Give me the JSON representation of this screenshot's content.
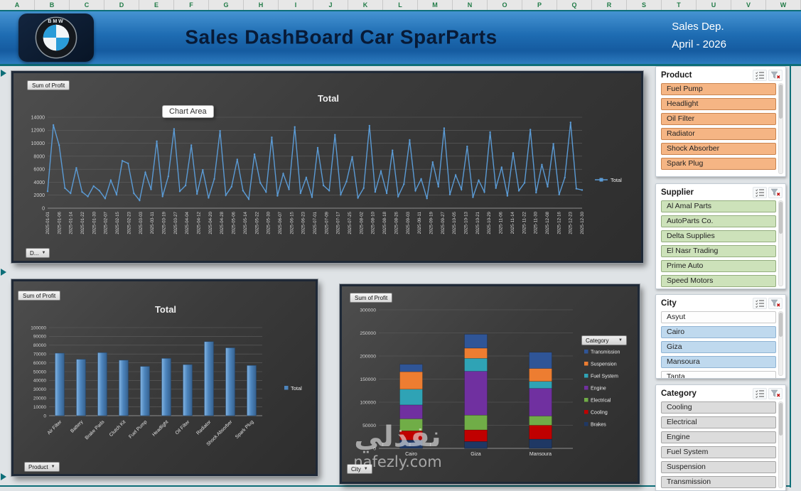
{
  "excel_columns": [
    "A",
    "B",
    "C",
    "D",
    "E",
    "F",
    "G",
    "H",
    "I",
    "J",
    "K",
    "L",
    "M",
    "N",
    "O",
    "P",
    "Q",
    "R",
    "S",
    "T",
    "U",
    "V",
    "W"
  ],
  "header": {
    "title": "Sales DashBoard Car SparParts",
    "dept_line1": "Sales Dep.",
    "dept_line2": "April - 2026",
    "logo_text": "BMW"
  },
  "charts": {
    "line": {
      "type": "line",
      "title": "Total",
      "field_button": "Sum of Profit",
      "axis_button": "D...",
      "tooltip": "Chart Area",
      "legend": "Total",
      "color": "#5b9bd5",
      "ylim": [
        0,
        14000
      ],
      "ytick": 2000,
      "labels": [
        "2025-01-01",
        "2025-01-06",
        "2025-01-14",
        "2025-01-22",
        "2025-01-30",
        "2025-02-07",
        "2025-02-15",
        "2025-02-23",
        "2025-03-03",
        "2025-03-11",
        "2025-03-19",
        "2025-03-27",
        "2025-04-04",
        "2025-04-12",
        "2025-04-20",
        "2025-04-28",
        "2025-05-06",
        "2025-05-14",
        "2025-05-22",
        "2025-05-30",
        "2025-06-07",
        "2025-06-15",
        "2025-06-23",
        "2025-07-01",
        "2025-07-09",
        "2025-07-17",
        "2025-07-25",
        "2025-08-02",
        "2025-08-10",
        "2025-08-18",
        "2025-08-26",
        "2025-09-03",
        "2025-09-11",
        "2025-09-19",
        "2025-09-27",
        "2025-10-05",
        "2025-10-13",
        "2025-10-21",
        "2025-10-29",
        "2025-11-06",
        "2025-11-14",
        "2025-11-22",
        "2025-11-30",
        "2025-12-08",
        "2025-12-16",
        "2025-12-23",
        "2025-12-30"
      ],
      "values": [
        2600,
        12800,
        9700,
        3100,
        2300,
        6200,
        2500,
        1800,
        3400,
        2700,
        1500,
        4300,
        2100,
        7300,
        6900,
        2300,
        1200,
        5500,
        2900,
        10300,
        1800,
        4900,
        12200,
        2600,
        3500,
        9700,
        2200,
        5900,
        1600,
        4500,
        11900,
        2000,
        3300,
        7500,
        2700,
        1400,
        8300,
        3900,
        2500,
        10900,
        1900,
        5300,
        2900,
        12500,
        2300,
        4700,
        1700,
        9300,
        3500,
        2700,
        11300,
        2100,
        4100,
        7900,
        1600,
        3100,
        12700,
        2500,
        5700,
        2300,
        8900,
        1800,
        3700,
        10500,
        2700,
        4500,
        1500,
        7100,
        3300,
        12300,
        2100,
        5100,
        2900,
        9500,
        1700,
        4300,
        2500,
        11700,
        3100,
        6300,
        1900,
        8500,
        2700,
        3900,
        12100,
        2400,
        6700,
        3300,
        9900,
        2100,
        4700,
        13200,
        3000,
        2800
      ]
    },
    "bar": {
      "type": "bar",
      "title": "Total",
      "field_button": "Sum of Profit",
      "axis_button": "Product",
      "legend": "Total",
      "color": "#4d85bd",
      "ylim": [
        0,
        100000
      ],
      "ytick": 10000,
      "categories": [
        "Air Filter",
        "Battery",
        "Brake Pads",
        "Clutch Kit",
        "Fuel Pump",
        "Headlight",
        "Oil Filter",
        "Radiator",
        "Shock Absorber",
        "Spark Plug"
      ],
      "values": [
        71000,
        64000,
        71500,
        63000,
        56000,
        65000,
        58000,
        84000,
        77000,
        57000
      ]
    },
    "stacked": {
      "type": "stacked-bar",
      "field_button": "Sum of Profit",
      "axis_button": "City",
      "legend_button": "Category",
      "ylim": [
        0,
        300000
      ],
      "ytick": 50000,
      "categories": [
        "Cairo",
        "Giza",
        "Mansoura"
      ],
      "series": [
        {
          "name": "Brakes",
          "color": "#1f3864",
          "values": [
            18000,
            15000,
            20000
          ]
        },
        {
          "name": "Cooling",
          "color": "#c00000",
          "values": [
            20000,
            25000,
            30000
          ]
        },
        {
          "name": "Electrical",
          "color": "#70ad47",
          "values": [
            26000,
            32000,
            20000
          ]
        },
        {
          "name": "Engine",
          "color": "#7030a0",
          "values": [
            30000,
            95000,
            60000
          ]
        },
        {
          "name": "Fuel System",
          "color": "#2fa3b5",
          "values": [
            34000,
            28000,
            15000
          ]
        },
        {
          "name": "Suspension",
          "color": "#ed7d31",
          "values": [
            38000,
            22000,
            28000
          ]
        },
        {
          "name": "Transmission",
          "color": "#2f5597",
          "values": [
            16000,
            30000,
            35000
          ]
        }
      ],
      "legend_order": [
        "Transmission",
        "Suspension",
        "Fuel System",
        "Engine",
        "Electrical",
        "Cooling",
        "Brakes"
      ]
    }
  },
  "slicers": [
    {
      "title": "Product",
      "item_bg": "#f5b584",
      "item_border": "#c9834f",
      "items": [
        {
          "label": "Fuel Pump",
          "selected": true
        },
        {
          "label": "Headlight",
          "selected": true
        },
        {
          "label": "Oil Filter",
          "selected": true
        },
        {
          "label": "Radiator",
          "selected": true
        },
        {
          "label": "Shock Absorber",
          "selected": true
        },
        {
          "label": "Spark Plug",
          "selected": true
        }
      ]
    },
    {
      "title": "Supplier",
      "item_bg": "#cde2ba",
      "item_border": "#94ae7e",
      "items": [
        {
          "label": "Al Amal Parts",
          "selected": true
        },
        {
          "label": "AutoParts Co.",
          "selected": true
        },
        {
          "label": "Delta Supplies",
          "selected": true
        },
        {
          "label": "El Nasr Trading",
          "selected": true
        },
        {
          "label": "Prime Auto",
          "selected": true
        },
        {
          "label": "Speed Motors",
          "selected": true
        }
      ]
    },
    {
      "title": "City",
      "item_bg": "#bfd9ee",
      "item_border": "#8fb4d4",
      "items": [
        {
          "label": "Asyut",
          "selected": false
        },
        {
          "label": "Cairo",
          "selected": true
        },
        {
          "label": "Giza",
          "selected": true
        },
        {
          "label": "Mansoura",
          "selected": true
        },
        {
          "label": "Tanta",
          "selected": false
        }
      ]
    },
    {
      "title": "Category",
      "item_bg": "#dcdcdc",
      "item_border": "#a6a6a6",
      "items": [
        {
          "label": "Cooling",
          "selected": true
        },
        {
          "label": "Electrical",
          "selected": true
        },
        {
          "label": "Engine",
          "selected": true
        },
        {
          "label": "Fuel System",
          "selected": true
        },
        {
          "label": "Suspension",
          "selected": true
        },
        {
          "label": "Transmission",
          "selected": true
        }
      ]
    }
  ],
  "watermark": {
    "arabic": "نفذلي",
    "latin": "nafezly.com"
  }
}
